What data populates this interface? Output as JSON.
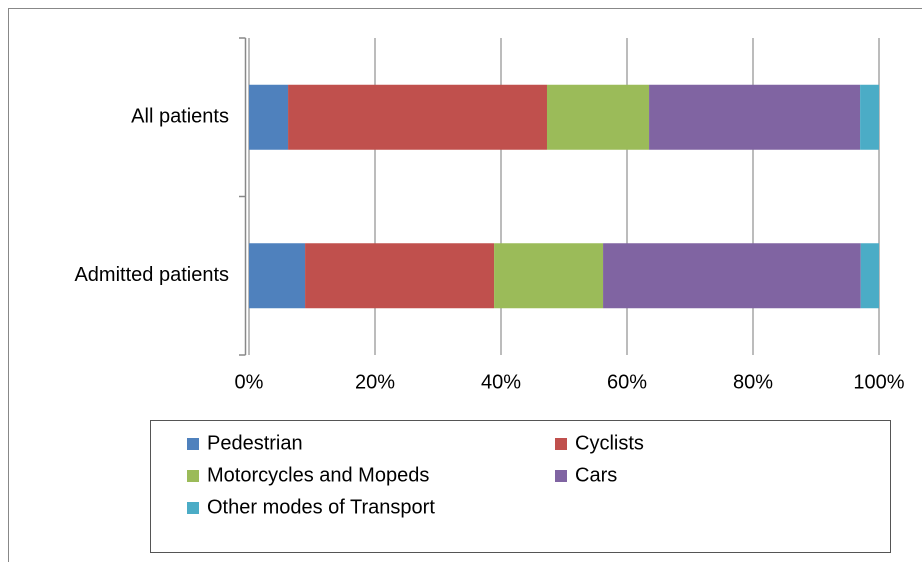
{
  "chart_data": {
    "type": "stacked_bar_horizontal",
    "categories": [
      "All patients",
      "Admitted patients"
    ],
    "series": [
      {
        "name": "Pedestrian",
        "color": "#4f81bd",
        "values": [
          6.2,
          8.9
        ]
      },
      {
        "name": "Cyclists",
        "color": "#c0504d",
        "values": [
          41.1,
          30.0
        ]
      },
      {
        "name": "Motorcycles and Mopeds",
        "color": "#9bbb59",
        "values": [
          16.2,
          17.3
        ]
      },
      {
        "name": "Cars",
        "color": "#8064a2",
        "values": [
          33.5,
          40.9
        ]
      },
      {
        "name": "Other modes of Transport",
        "color": "#4bacc6",
        "values": [
          3.0,
          2.9
        ]
      }
    ],
    "xlim": [
      0,
      100
    ],
    "xticks": [
      {
        "value": 0,
        "label": "0%"
      },
      {
        "value": 20,
        "label": "20%"
      },
      {
        "value": 40,
        "label": "40%"
      },
      {
        "value": 60,
        "label": "60%"
      },
      {
        "value": 80,
        "label": "80%"
      },
      {
        "value": 100,
        "label": "100%"
      }
    ],
    "grid": true
  }
}
